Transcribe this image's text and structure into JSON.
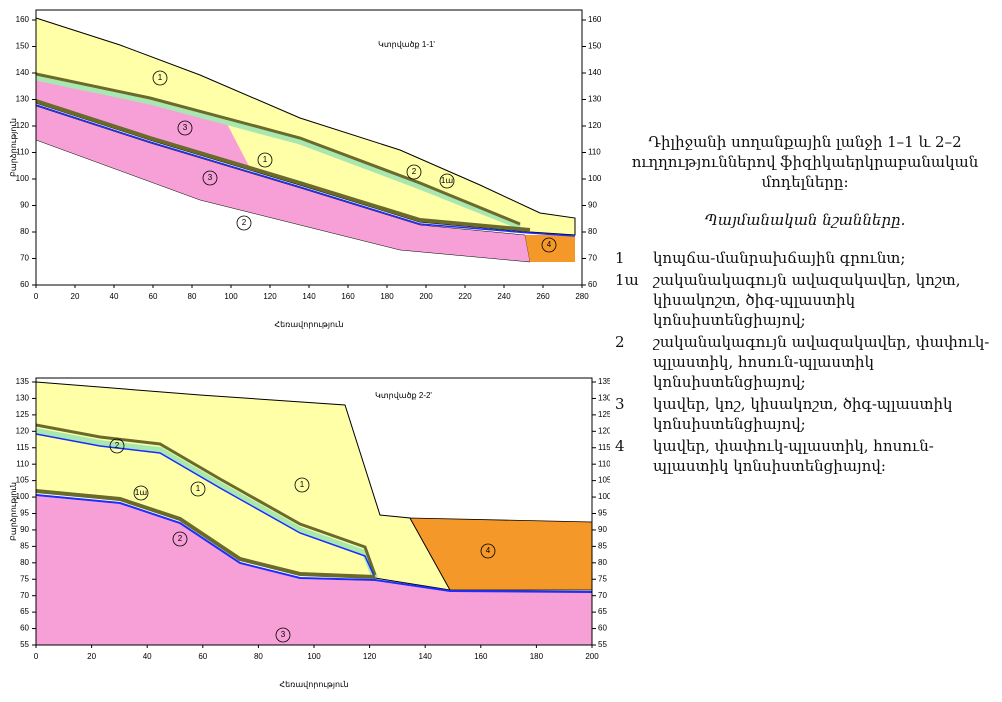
{
  "figure": {
    "panels": [
      {
        "title": "Կտրվածք 1-1'",
        "y_label": "Բարձրություն",
        "x_label": "Հեռավորություն",
        "ylim": [
          60,
          160
        ],
        "yticks": [
          60,
          70,
          80,
          90,
          100,
          110,
          120,
          130,
          140,
          150,
          160
        ],
        "xlim": [
          0,
          280
        ],
        "xticks": [
          0,
          20,
          40,
          60,
          80,
          100,
          120,
          140,
          160,
          180,
          200,
          220,
          240,
          260,
          280
        ],
        "layer_labels": [
          "1",
          "3",
          "1",
          "3",
          "2",
          "2",
          "1ա",
          "4"
        ]
      },
      {
        "title": "Կտրվածք 2-2'",
        "y_label": "Բարձրություն",
        "x_label": "Հեռավորություն",
        "ylim": [
          55,
          135
        ],
        "yticks": [
          55,
          60,
          65,
          70,
          75,
          80,
          85,
          90,
          95,
          100,
          105,
          110,
          115,
          120,
          125,
          130,
          135
        ],
        "xlim": [
          0,
          200
        ],
        "xticks": [
          0,
          20,
          40,
          60,
          80,
          100,
          120,
          140,
          160,
          180,
          200
        ],
        "layer_labels": [
          "2",
          "1ա",
          "1",
          "1",
          "2",
          "4",
          "3"
        ]
      }
    ]
  },
  "caption": {
    "text": "Դիլիջանի սողանքային լանջի 1–1 և 2–2 ուղղություններով ֆիզիկաերկրաբանական մոդելները:",
    "legend_title": "Պայմանական նշանները.",
    "legend": [
      {
        "key": "1",
        "text": "կոպճա-մանրախճային գրունտ;"
      },
      {
        "key": "1ա",
        "text": "շականակագույն ավազակավեր, կոշտ, կիսակոշտ, ծիգ-պլաստիկ կոնսիստենցիայով;"
      },
      {
        "key": "2",
        "text": "շականակագույն ավազակավեր, փափուկ-պլաստիկ, հոսուն-պլաստիկ կոնսիստենցիայով;"
      },
      {
        "key": "3",
        "text": "կավեր, կոշ, կիսակոշտ, ծիգ-պլաստիկ կոնսիստենցիայով;"
      },
      {
        "key": "4",
        "text": "կավեր, փափուկ-պլաստիկ, հոսուն-պլաստիկ կոնսիստենցիայով:"
      }
    ]
  }
}
